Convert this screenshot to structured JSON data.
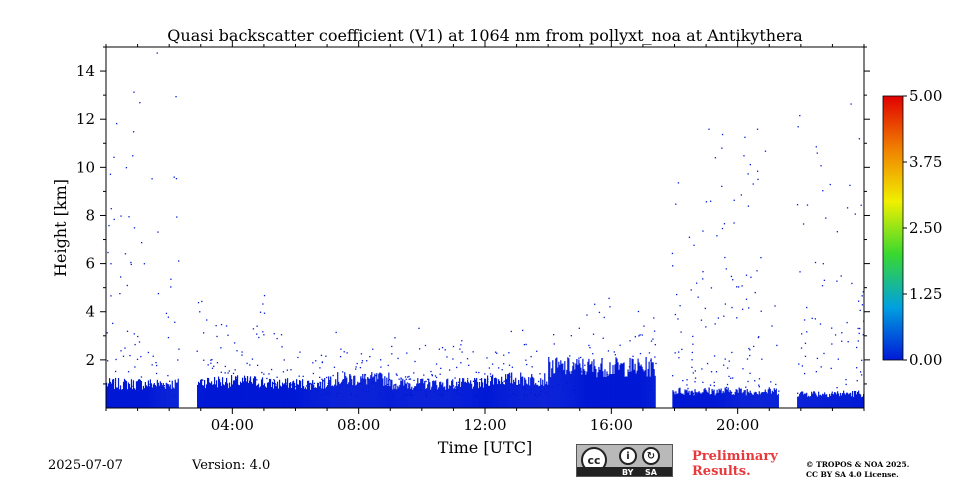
{
  "chart_data": {
    "type": "heatmap",
    "title": "Quasi backscatter coefficient (V1) at 1064 nm from pollyxt_noa at Antikythera",
    "xlabel": "Time [UTC]",
    "ylabel": "Height [km]",
    "xlim_hours": [
      0,
      24
    ],
    "ylim_km": [
      0,
      15
    ],
    "x_ticks": [
      {
        "value": 4,
        "label": "04:00"
      },
      {
        "value": 8,
        "label": "08:00"
      },
      {
        "value": 12,
        "label": "12:00"
      },
      {
        "value": 16,
        "label": "16:00"
      },
      {
        "value": 20,
        "label": "20:00"
      }
    ],
    "y_ticks": [
      {
        "value": 2,
        "label": "2"
      },
      {
        "value": 4,
        "label": "4"
      },
      {
        "value": 6,
        "label": "6"
      },
      {
        "value": 8,
        "label": "8"
      },
      {
        "value": 10,
        "label": "10"
      },
      {
        "value": 12,
        "label": "12"
      },
      {
        "value": 14,
        "label": "14"
      }
    ],
    "colorbar": {
      "min": 0.0,
      "max": 5.0,
      "ticks": [
        "0.00",
        "1.25",
        "2.50",
        "3.75",
        "5.00"
      ],
      "colormap": [
        "#0019d6",
        "#00a0e0",
        "#38d830",
        "#f0f000",
        "#f08000",
        "#e00000"
      ]
    },
    "data_gaps_hours": [
      [
        2.3,
        2.85
      ],
      [
        17.4,
        17.9
      ],
      [
        21.3,
        21.85
      ]
    ],
    "boundary_layer": {
      "segments": [
        {
          "start": 0.0,
          "end": 2.3,
          "height_km": 1.0
        },
        {
          "start": 2.85,
          "end": 5.0,
          "height_km": 1.1
        },
        {
          "start": 5.0,
          "end": 7.0,
          "height_km": 1.0
        },
        {
          "start": 7.0,
          "end": 9.0,
          "height_km": 1.2
        },
        {
          "start": 9.0,
          "end": 12.0,
          "height_km": 1.0
        },
        {
          "start": 12.0,
          "end": 14.0,
          "height_km": 1.2
        },
        {
          "start": 14.0,
          "end": 17.4,
          "height_km": 1.7
        },
        {
          "start": 17.9,
          "end": 21.3,
          "height_km": 0.7
        },
        {
          "start": 21.85,
          "end": 24.0,
          "height_km": 0.6
        }
      ],
      "value_approx": 0.0
    }
  },
  "footer": {
    "date": "2025-07-07",
    "version": "Version: 4.0",
    "license_by": "BY",
    "license_sa": "SA",
    "license_cc": "cc",
    "preliminary_line1": "Preliminary",
    "preliminary_line2": "Results.",
    "copyright_line1": "© TROPOS & NOA 2025.",
    "copyright_line2": "CC BY SA 4.0 License."
  }
}
